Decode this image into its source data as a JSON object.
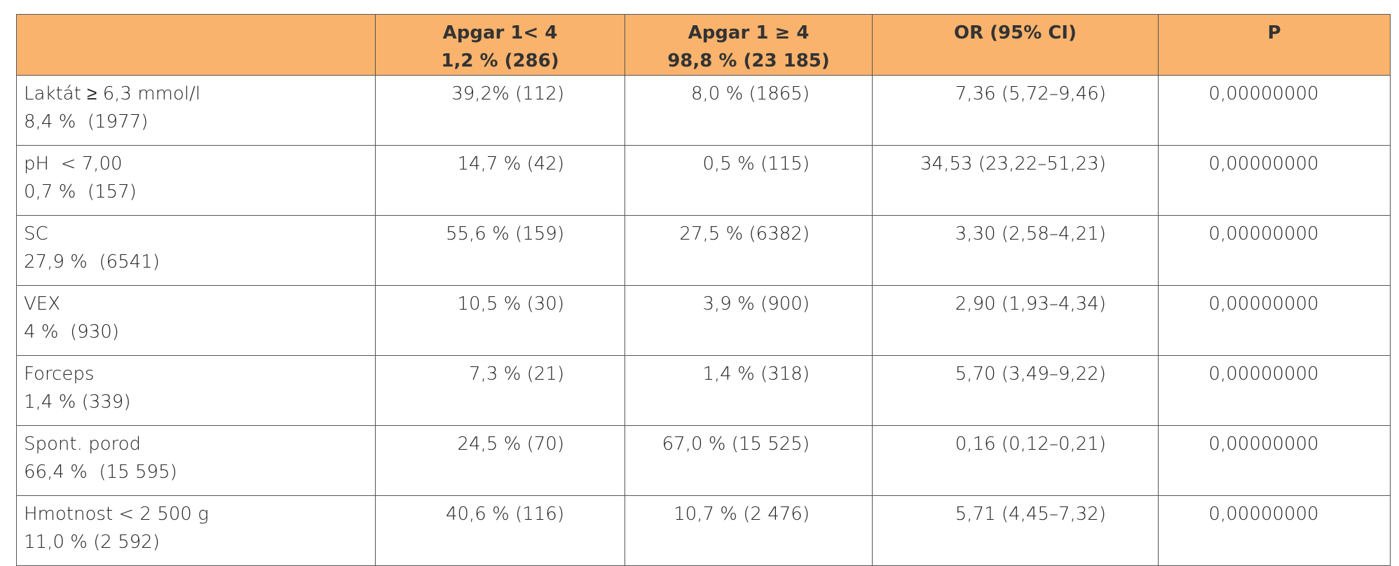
{
  "table": {
    "header": [
      [
        "Apgar 1< 4",
        "1,2 % (286)"
      ],
      [
        "Apgar 1 ≥ 4",
        "98,8 % (23 185)"
      ],
      [
        "OR (95% CI)"
      ],
      [
        "P"
      ]
    ],
    "rows": [
      {
        "label": [
          "Laktát ≥ 6,3 mmol/l",
          "8,4 %  (1977)"
        ],
        "cells": [
          "39,2% (112)",
          "8,0 % (1865)",
          "7,36 (5,72–9,46)",
          "0,00000000"
        ]
      },
      {
        "label": [
          "pH  < 7,00",
          "0,7 %  (157)"
        ],
        "cells": [
          "14,7 % (42)",
          "0,5 % (115)",
          "34,53 (23,22–51,23)",
          "0,00000000"
        ]
      },
      {
        "label": [
          "SC",
          "27,9 %  (6541)"
        ],
        "cells": [
          "55,6 % (159)",
          "27,5 % (6382)",
          "3,30 (2,58–4,21)",
          "0,00000000"
        ]
      },
      {
        "label": [
          "VEX",
          "4 %  (930)"
        ],
        "cells": [
          "10,5 % (30)",
          "3,9 % (900)",
          "2,90 (1,93–4,34)",
          "0,00000000"
        ]
      },
      {
        "label": [
          "Forceps",
          "1,4 % (339)"
        ],
        "cells": [
          "7,3 % (21)",
          "1,4 % (318)",
          "5,70 (3,49–9,22)",
          "0,00000000"
        ]
      },
      {
        "label": [
          "Spont. porod",
          "66,4 %  (15 595)"
        ],
        "cells": [
          "24,5 % (70)",
          "67,0 % (15 525)",
          "0,16 (0,12–0,21)",
          "0,00000000"
        ]
      },
      {
        "label": [
          "Hmotnost < 2 500 g",
          "11,0 % (2 592)"
        ],
        "cells": [
          "40,6 % (116)",
          "10,7 % (2 476)",
          "5,71 (4,45–7,32)",
          "0,00000000"
        ]
      }
    ]
  }
}
